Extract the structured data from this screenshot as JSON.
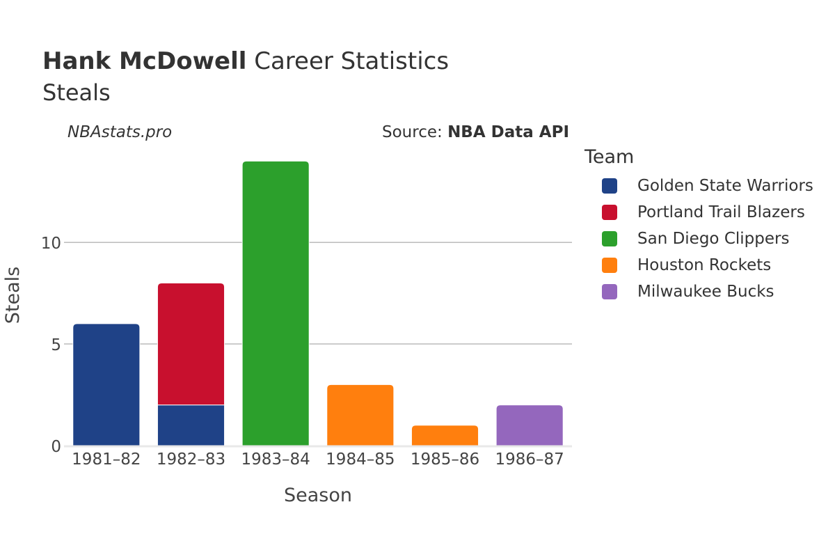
{
  "header": {
    "title_bold": "Hank McDowell",
    "title_rest": "Career Statistics",
    "subtitle": "Steals",
    "watermark": "NBAstats.pro",
    "source_prefix": "Source: ",
    "source_name": "NBA Data API"
  },
  "legend": {
    "title": "Team",
    "items": [
      {
        "label": "Golden State Warriors",
        "color": "#1f4287"
      },
      {
        "label": "Portland Trail Blazers",
        "color": "#c8102e"
      },
      {
        "label": "San Diego Clippers",
        "color": "#2ca02c"
      },
      {
        "label": "Houston Rockets",
        "color": "#ff7f0e"
      },
      {
        "label": "Milwaukee Bucks",
        "color": "#9467bd"
      }
    ]
  },
  "chart_data": {
    "type": "bar",
    "stacked": true,
    "xlabel": "Season",
    "ylabel": "Steals",
    "categories": [
      "1981–82",
      "1982–83",
      "1983–84",
      "1984–85",
      "1985–86",
      "1986–87"
    ],
    "ylim": [
      0,
      14.8
    ],
    "yticks": [
      0,
      5,
      10
    ],
    "grid": true,
    "legend_position": "right",
    "series": [
      {
        "name": "Golden State Warriors",
        "color": "#1f4287",
        "values": [
          6,
          2,
          0,
          0,
          0,
          0
        ]
      },
      {
        "name": "Portland Trail Blazers",
        "color": "#c8102e",
        "values": [
          0,
          6,
          0,
          0,
          0,
          0
        ]
      },
      {
        "name": "San Diego Clippers",
        "color": "#2ca02c",
        "values": [
          0,
          0,
          14,
          0,
          0,
          0
        ]
      },
      {
        "name": "Houston Rockets",
        "color": "#ff7f0e",
        "values": [
          0,
          0,
          0,
          3,
          1,
          0
        ]
      },
      {
        "name": "Milwaukee Bucks",
        "color": "#9467bd",
        "values": [
          0,
          0,
          0,
          0,
          0,
          2
        ]
      }
    ]
  }
}
